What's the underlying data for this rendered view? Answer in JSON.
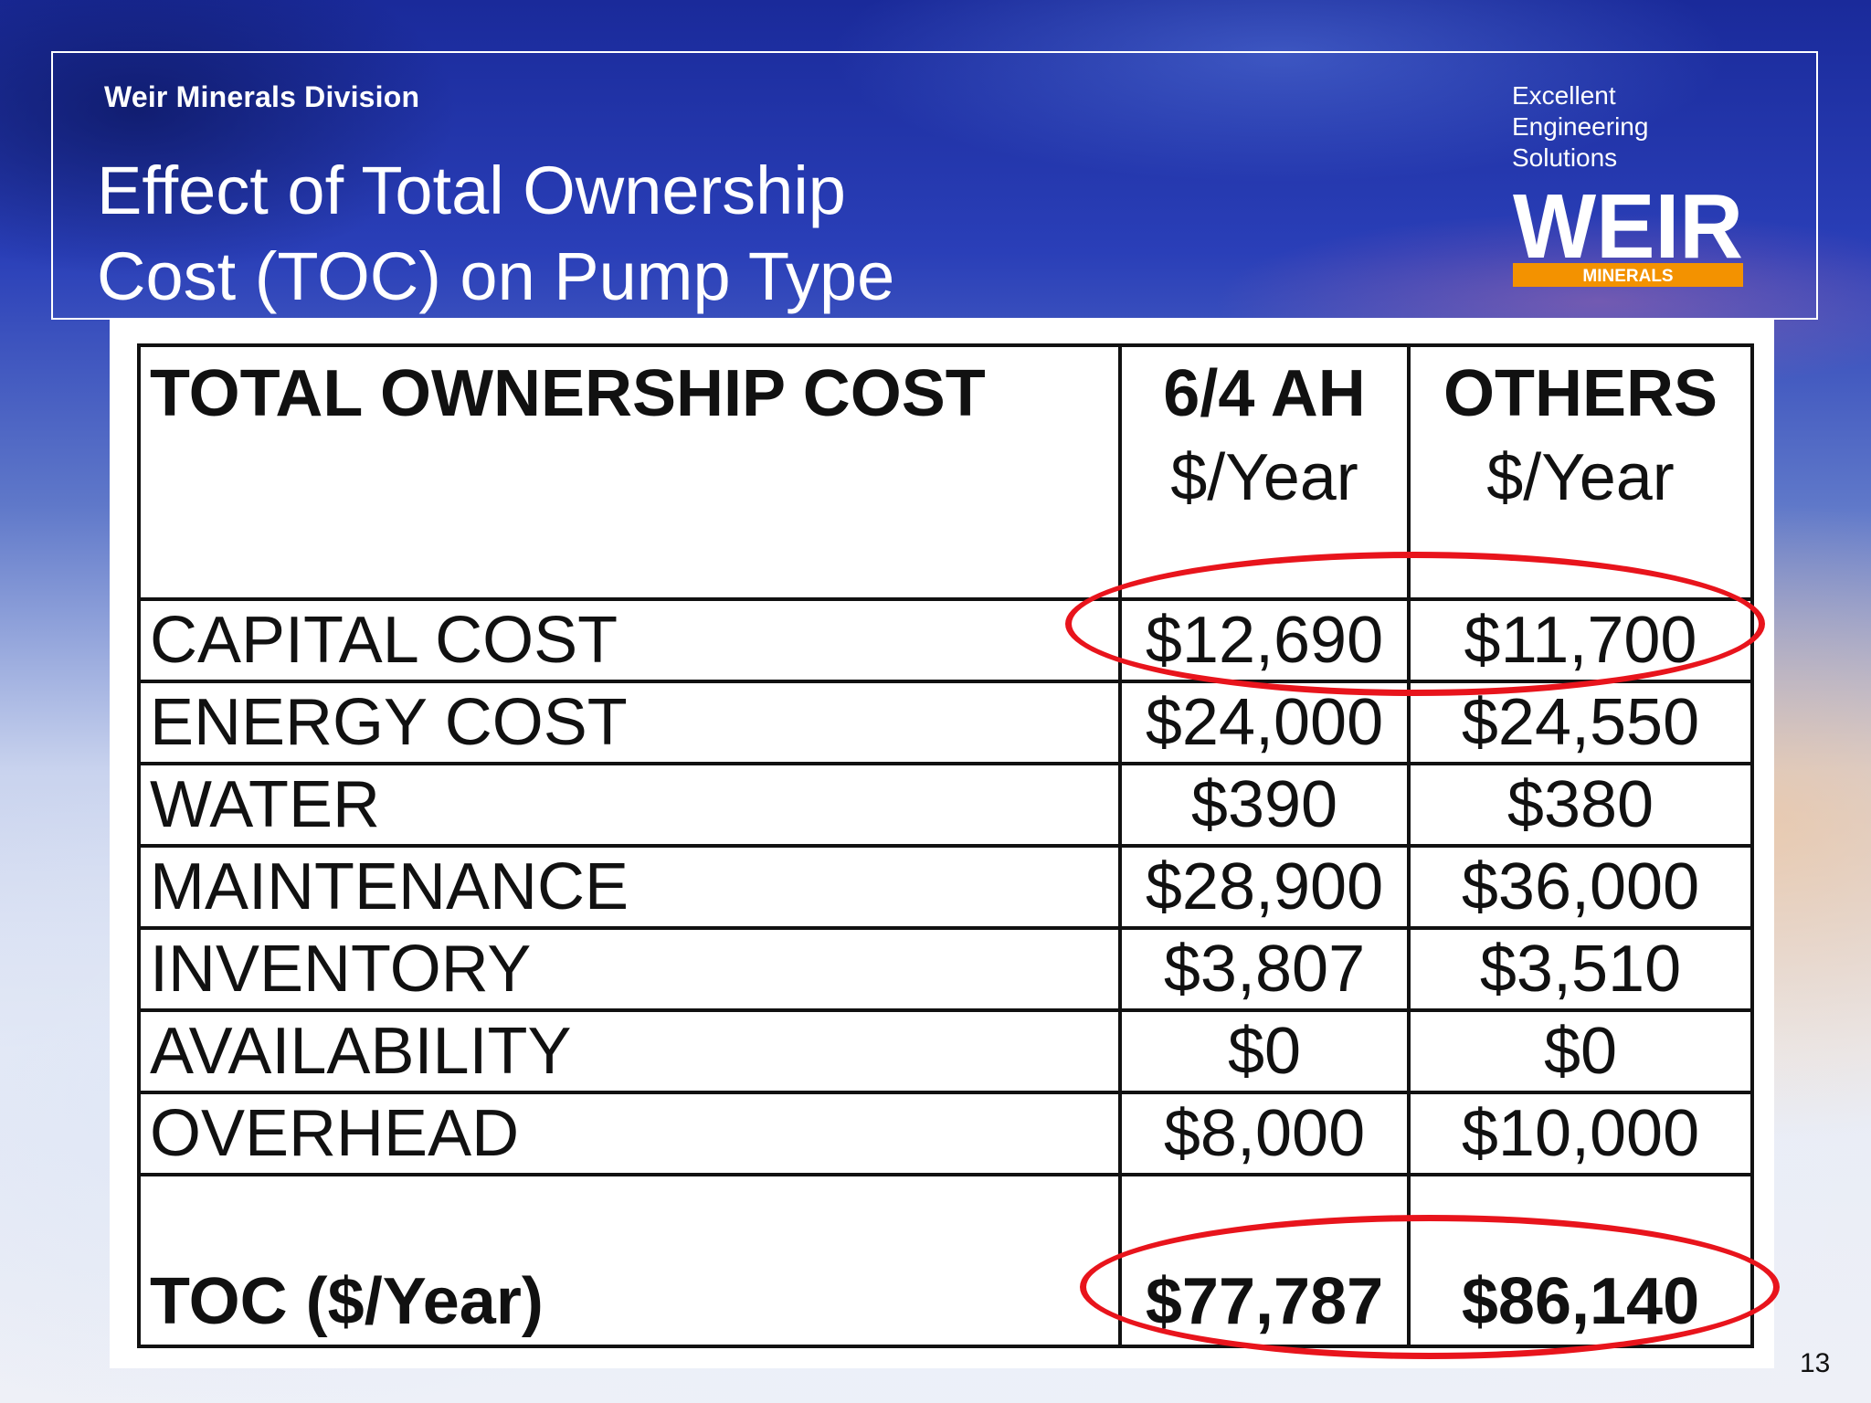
{
  "header": {
    "division": "Weir Minerals Division",
    "title_line1": "Effect of Total Ownership",
    "title_line2": "Cost (TOC) on Pump Type",
    "tagline_line1": "Excellent",
    "tagline_line2": "Engineering",
    "tagline_line3": "Solutions",
    "logo_wordmark": "WEIR",
    "logo_sub": "MINERALS"
  },
  "colors": {
    "accent_red": "#e8141c",
    "logo_orange": "#f39200"
  },
  "table": {
    "columns": [
      {
        "label": "TOTAL OWNERSHIP COST",
        "unit": ""
      },
      {
        "label": "6/4 AH",
        "unit": "$/Year"
      },
      {
        "label": "OTHERS",
        "unit": "$/Year"
      }
    ],
    "rows": [
      {
        "label": "CAPITAL COST",
        "ah": "$12,690",
        "others": "$11,700"
      },
      {
        "label": "ENERGY COST",
        "ah": "$24,000",
        "others": "$24,550"
      },
      {
        "label": "WATER",
        "ah": "$390",
        "others": "$380"
      },
      {
        "label": "MAINTENANCE",
        "ah": "$28,900",
        "others": "$36,000"
      },
      {
        "label": "INVENTORY",
        "ah": "$3,807",
        "others": "$3,510"
      },
      {
        "label": "AVAILABILITY",
        "ah": "$0",
        "others": "$0"
      },
      {
        "label": "OVERHEAD",
        "ah": "$8,000",
        "others": "$10,000"
      }
    ],
    "total": {
      "label": "TOC ($/Year)",
      "ah": "$77,787",
      "others": "$86,140"
    }
  },
  "page_number": "13"
}
